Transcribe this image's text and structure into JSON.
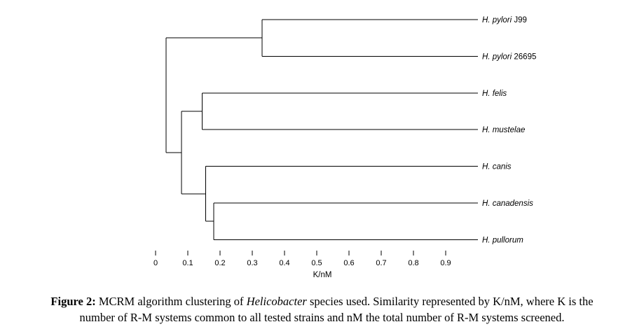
{
  "chart_data": {
    "type": "dendrogram",
    "orientation": "horizontal-leaves-right",
    "xlabel": "K/nM",
    "x_ticks": [
      "0",
      "0.1",
      "0.2",
      "0.3",
      "0.4",
      "0.5",
      "0.6",
      "0.7",
      "0.8",
      "0.9"
    ],
    "xlim": [
      0,
      1.0
    ],
    "leaf_extent_k": 1.0,
    "grid": false,
    "leaves": [
      {
        "label": "H. pylori J99",
        "italic_part": "H. pylori",
        "plain_part": " J99"
      },
      {
        "label": "H. pylori 26695",
        "italic_part": "H. pylori",
        "plain_part": " 26695"
      },
      {
        "label": "H. felis",
        "italic_part": "H. felis",
        "plain_part": ""
      },
      {
        "label": "H. mustelae",
        "italic_part": "H. mustelae",
        "plain_part": ""
      },
      {
        "label": "H. canis",
        "italic_part": "H. canis",
        "plain_part": ""
      },
      {
        "label": "H. canadensis",
        "italic_part": "H. canadensis",
        "plain_part": ""
      },
      {
        "label": "H. pullorum",
        "italic_part": "H. pullorum",
        "plain_part": ""
      }
    ],
    "merges": [
      {
        "id": "pylori-pair",
        "children": [
          "L0",
          "L1"
        ],
        "k": 0.33,
        "note": "H. pylori J99 + H. pylori 26695"
      },
      {
        "id": "felis-mustelae",
        "children": [
          "L2",
          "L3"
        ],
        "k": 0.145,
        "note": "H. felis + H. mustelae"
      },
      {
        "id": "canadensis-pullorum",
        "children": [
          "L5",
          "L6"
        ],
        "k": 0.18,
        "note": "H. canadensis + H. pullorum"
      },
      {
        "id": "canis-group",
        "children": [
          "L4",
          "canadensis-pullorum"
        ],
        "k": 0.155,
        "note": "H. canis joins (H. canadensis, H. pullorum)"
      },
      {
        "id": "lower-supercluster",
        "children": [
          "felis-mustelae",
          "canis-group"
        ],
        "k": 0.08,
        "note": "(H. felis, H. mustelae) joins (H. canis, H. canadensis, H. pullorum)"
      },
      {
        "id": "root",
        "children": [
          "pylori-pair",
          "lower-supercluster"
        ],
        "k": 0.033,
        "note": "root join of all species"
      }
    ]
  },
  "caption": {
    "bold": "Figure 2:",
    "pre_italic": " MCRM algorithm clustering of ",
    "italic": "Helicobacter",
    "post_italic": " species used. Similarity represented by K/nM, where K is the",
    "line2": "number of R-M systems common to all tested strains and nM the total number of R-M systems screened."
  },
  "colors": {
    "line": "#000000",
    "text": "#000000",
    "background": "#ffffff"
  }
}
